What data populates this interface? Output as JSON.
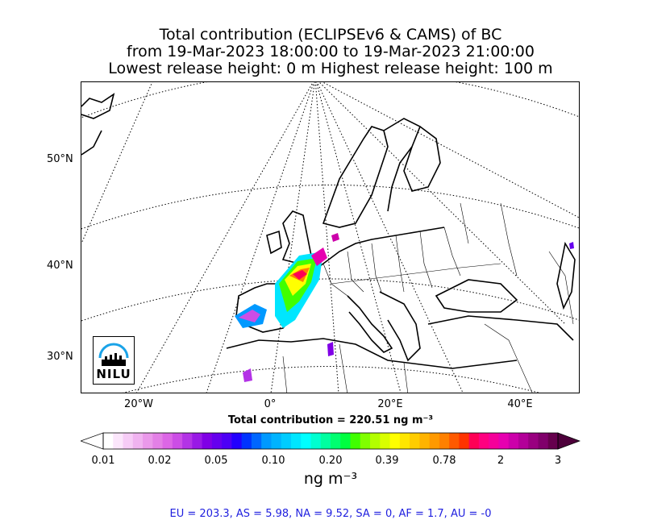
{
  "title": {
    "line1": "Total contribution (ECLIPSEv6 & CAMS) of BC",
    "line2": "from 19-Mar-2023 18:00:00 to 19-Mar-2023 21:00:00",
    "line3": "Lowest release height: 0 m       Highest release height: 100 m"
  },
  "map": {
    "lat_labels": [
      "50°N",
      "40°N",
      "30°N"
    ],
    "lon_labels": [
      "20°W",
      "0°",
      "20°E",
      "40°E"
    ],
    "logo_text": "NILU"
  },
  "total_contribution": "Total contribution = 220.51 ng m⁻³",
  "colorbar": {
    "tick_labels": [
      "0.01",
      "0.02",
      "0.05",
      "0.10",
      "0.20",
      "0.39",
      "0.78",
      "2",
      "3"
    ],
    "unit": "ng m⁻³",
    "colors": [
      "#ffffff",
      "#fbe6fb",
      "#f6ccf6",
      "#f0b3f0",
      "#ea99ea",
      "#e380e6",
      "#dc66e6",
      "#cc4de6",
      "#b333e6",
      "#9919e6",
      "#8000e6",
      "#6600ee",
      "#4d00f5",
      "#2200ff",
      "#0033ff",
      "#0066ff",
      "#0099ff",
      "#00b3ff",
      "#00ccff",
      "#00e6ff",
      "#00ffff",
      "#00ffd0",
      "#00ffa0",
      "#00ff70",
      "#00ff40",
      "#40ff00",
      "#80ff00",
      "#b3ff00",
      "#d9ff00",
      "#ffff00",
      "#ffe600",
      "#ffcc00",
      "#ffb300",
      "#ff9900",
      "#ff8000",
      "#ff5a00",
      "#ff3300",
      "#ff0055",
      "#ff0080",
      "#f5009a",
      "#e600b0",
      "#cc00aa",
      "#b30099",
      "#990080",
      "#80006b",
      "#66004d"
    ]
  },
  "regions_summary": "EU = 203.3,  AS = 5.98,  NA = 9.52,  SA = 0,  AF = 1.7,  AU = -0"
}
